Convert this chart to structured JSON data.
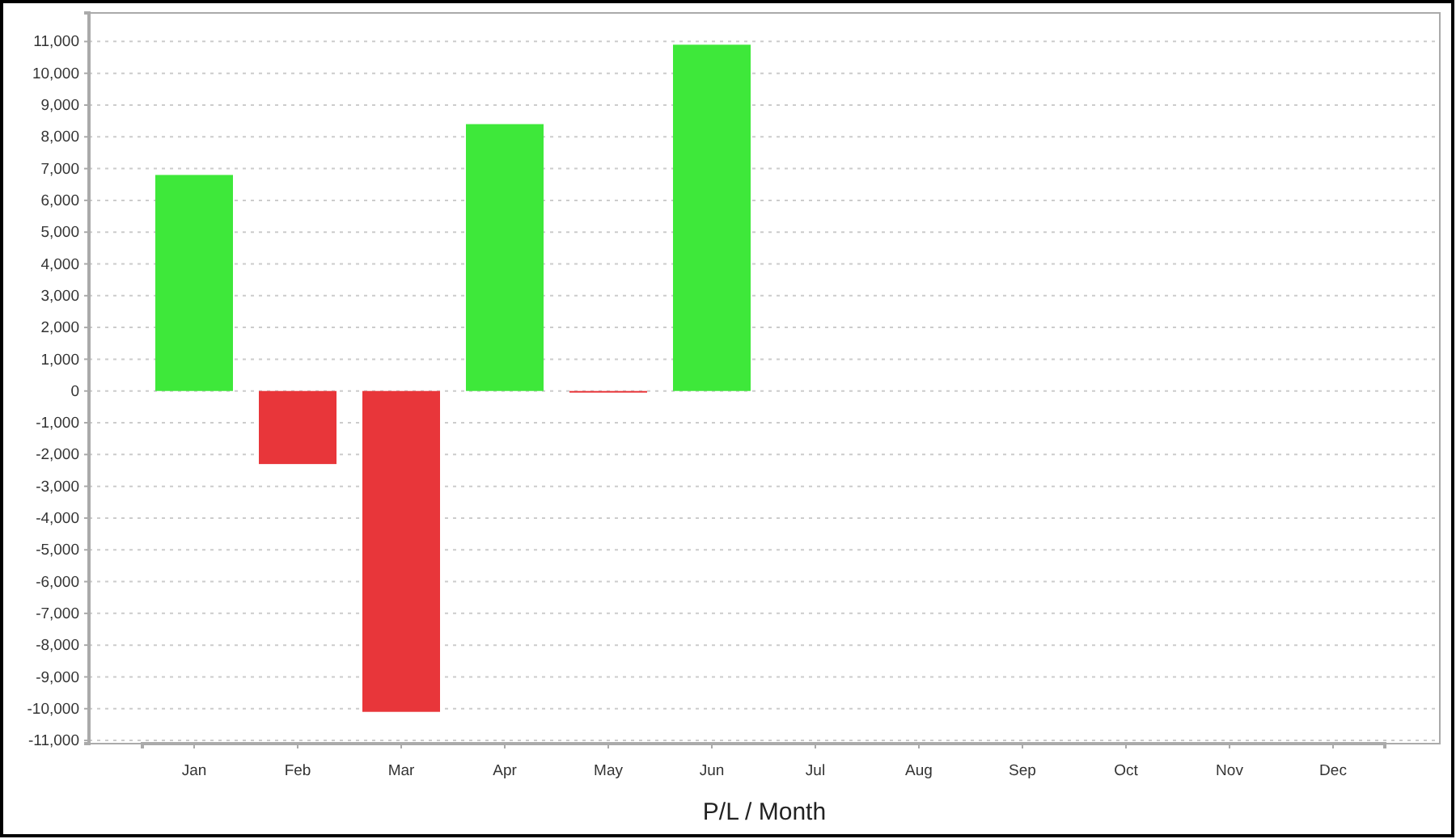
{
  "chart_data": {
    "type": "bar",
    "xlabel": "P/L / Month",
    "categories": [
      "Jan",
      "Feb",
      "Mar",
      "Apr",
      "May",
      "Jun",
      "Jul",
      "Aug",
      "Sep",
      "Oct",
      "Nov",
      "Dec"
    ],
    "values": [
      6800,
      -2300,
      -10100,
      8400,
      -50,
      10900,
      null,
      null,
      null,
      null,
      null,
      null
    ],
    "colors": [
      "#3ee83a",
      "#e8363a",
      "#e8363a",
      "#3ee83a",
      "#e8363a",
      "#3ee83a",
      null,
      null,
      null,
      null,
      null,
      null
    ],
    "ylim": [
      -11100,
      11900
    ],
    "yticks": [
      {
        "value": -11000,
        "label": "-11,000"
      },
      {
        "value": -10000,
        "label": "-10,000"
      },
      {
        "value": -9000,
        "label": "-9,000"
      },
      {
        "value": -8000,
        "label": "-8,000"
      },
      {
        "value": -7000,
        "label": "-7,000"
      },
      {
        "value": -6000,
        "label": "-6,000"
      },
      {
        "value": -5000,
        "label": "-5,000"
      },
      {
        "value": -4000,
        "label": "-4,000"
      },
      {
        "value": -3000,
        "label": "-3,000"
      },
      {
        "value": -2000,
        "label": "-2,000"
      },
      {
        "value": -1000,
        "label": "-1,000"
      },
      0,
      {
        "value": 1000,
        "label": "1,000"
      },
      {
        "value": 2000,
        "label": "2,000"
      },
      {
        "value": 3000,
        "label": "3,000"
      },
      {
        "value": 4000,
        "label": "4,000"
      },
      {
        "value": 5000,
        "label": "5,000"
      },
      {
        "value": 6000,
        "label": "6,000"
      },
      {
        "value": 7000,
        "label": "7,000"
      },
      {
        "value": 8000,
        "label": "8,000"
      },
      {
        "value": 9000,
        "label": "9,000"
      },
      {
        "value": 10000,
        "label": "10,000"
      },
      {
        "value": 11000,
        "label": "11,000"
      }
    ],
    "grid": "y"
  }
}
